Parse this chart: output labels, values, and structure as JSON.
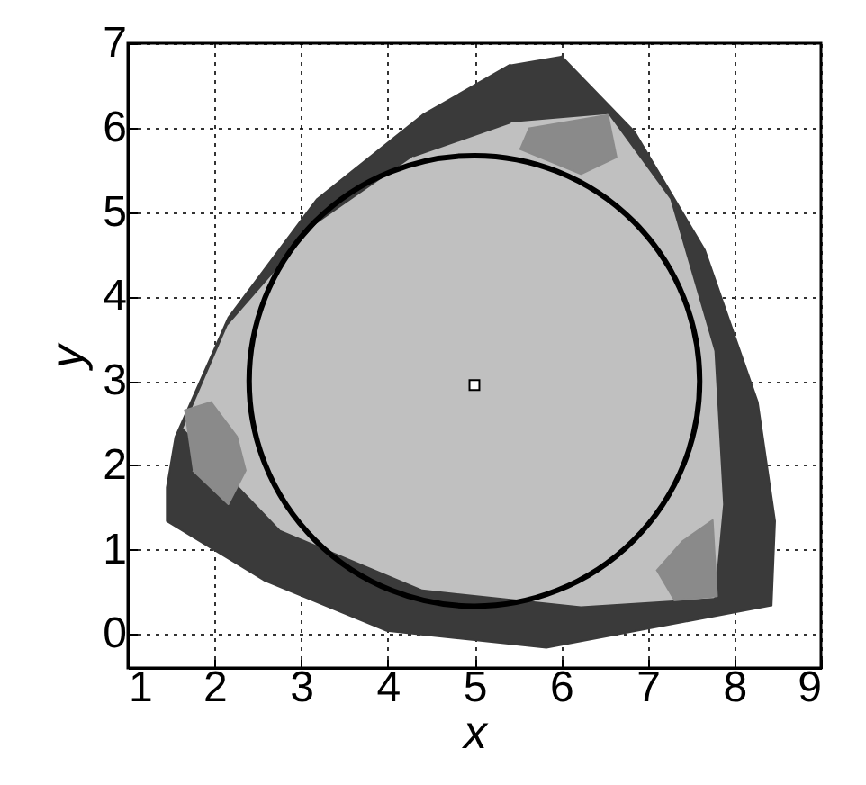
{
  "chart_data": {
    "type": "area",
    "xlabel": "x",
    "ylabel": "y",
    "xlim": [
      1,
      9
    ],
    "ylim": [
      -0.4,
      7
    ],
    "xticks": [
      1,
      2,
      3,
      4,
      5,
      6,
      7,
      8,
      9
    ],
    "yticks": [
      0,
      1,
      2,
      3,
      4,
      5,
      6,
      7
    ],
    "grid": true,
    "series": [
      {
        "color": "#3a3a3a",
        "x": [
          6.0,
          6.85,
          7.66,
          8.27,
          8.47,
          8.43,
          5.83,
          3.99,
          2.57,
          1.45,
          1.45,
          1.55,
          2.16,
          3.18,
          4.4,
          5.42
        ],
        "values": [
          6.85,
          5.95,
          4.55,
          2.75,
          1.34,
          0.34,
          -0.16,
          0.04,
          0.64,
          1.34,
          1.74,
          2.34,
          3.75,
          5.15,
          6.15,
          6.75
        ]
      },
      {
        "color": "#c0c0c0",
        "x": [
          5.42,
          6.54,
          7.25,
          7.76,
          7.86,
          7.76,
          6.23,
          4.4,
          2.77,
          1.65,
          2.16,
          3.18,
          4.3
        ],
        "values": [
          6.05,
          6.15,
          5.15,
          3.35,
          1.54,
          0.44,
          0.34,
          0.54,
          1.24,
          2.44,
          3.65,
          4.85,
          5.65
        ]
      },
      {
        "color": "#8a8a8a",
        "x": [
          5.62,
          6.54,
          6.64,
          6.23,
          5.52
        ],
        "values": [
          5.99,
          6.15,
          5.65,
          5.45,
          5.75
        ]
      },
      {
        "color": "#8a8a8a",
        "x": [
          1.65,
          1.96,
          2.26,
          2.36,
          2.16,
          1.75
        ],
        "values": [
          2.65,
          2.75,
          2.34,
          1.94,
          1.54,
          1.94
        ]
      },
      {
        "color": "#8a8a8a",
        "x": [
          7.1,
          7.4,
          7.75,
          7.8,
          7.3
        ],
        "values": [
          0.75,
          1.1,
          1.35,
          0.45,
          0.4
        ]
      },
      {
        "type": "scatter",
        "color": "#ffffff",
        "marker": "square",
        "x": [
          5.0
        ],
        "values": [
          2.95
        ]
      }
    ]
  }
}
